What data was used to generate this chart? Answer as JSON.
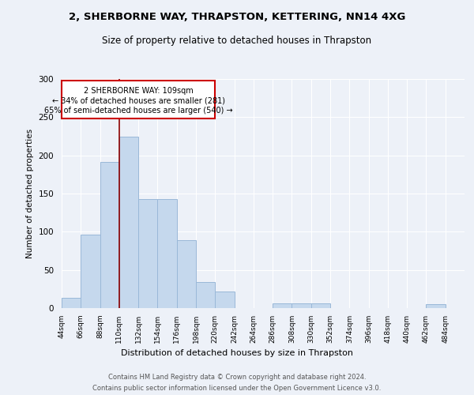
{
  "title1": "2, SHERBORNE WAY, THRAPSTON, KETTERING, NN14 4XG",
  "title2": "Size of property relative to detached houses in Thrapston",
  "xlabel": "Distribution of detached houses by size in Thrapston",
  "ylabel": "Number of detached properties",
  "bar_color": "#c5d8ed",
  "bar_edge_color": "#9ab8d8",
  "property_line_x": 110,
  "annotation_line1": "2 SHERBORNE WAY: 109sqm",
  "annotation_line2": "← 34% of detached houses are smaller (281)",
  "annotation_line3": "65% of semi-detached houses are larger (540) →",
  "bin_starts": [
    44,
    66,
    88,
    110,
    132,
    154,
    176,
    198,
    220,
    242,
    264,
    286,
    308,
    330,
    352,
    374,
    396,
    418,
    440,
    462
  ],
  "bin_labels": [
    "44sqm",
    "66sqm",
    "88sqm",
    "110sqm",
    "132sqm",
    "154sqm",
    "176sqm",
    "198sqm",
    "220sqm",
    "242sqm",
    "264sqm",
    "286sqm",
    "308sqm",
    "330sqm",
    "352sqm",
    "374sqm",
    "396sqm",
    "418sqm",
    "440sqm",
    "462sqm",
    "484sqm"
  ],
  "values": [
    13,
    96,
    191,
    224,
    143,
    143,
    89,
    34,
    22,
    0,
    0,
    6,
    6,
    6,
    0,
    0,
    0,
    0,
    0,
    5
  ],
  "ylim": [
    0,
    300
  ],
  "yticks": [
    0,
    50,
    100,
    150,
    200,
    250,
    300
  ],
  "background_color": "#edf1f8",
  "footnote1": "Contains HM Land Registry data © Crown copyright and database right 2024.",
  "footnote2": "Contains public sector information licensed under the Open Government Licence v3.0."
}
